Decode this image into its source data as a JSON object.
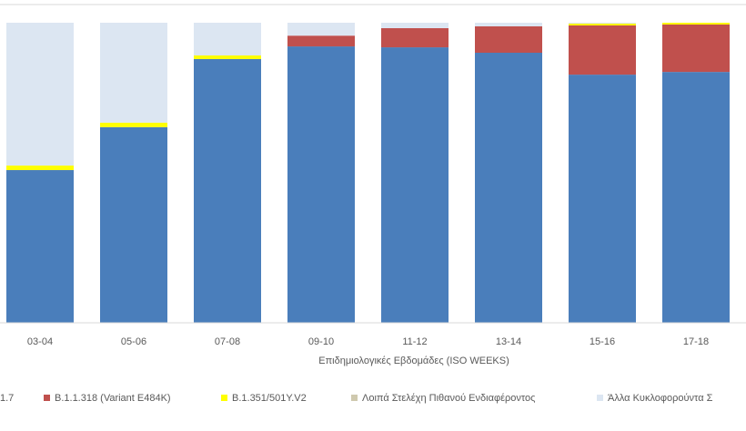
{
  "chart_data": {
    "type": "stacked_bar",
    "x_label": "Επιδημιολογικές Εβδομάδες (ISO WEEKS)",
    "categories": [
      "03-04",
      "05-06",
      "07-08",
      "09-10",
      "11-12",
      "13-14",
      "15-16",
      "17-18"
    ],
    "series": [
      {
        "name": "1.7",
        "color": "#4a7ebb",
        "values": [
          50.9,
          65.2,
          87.9,
          92.1,
          91.8,
          90.0,
          82.7,
          83.6
        ]
      },
      {
        "name": "B.1.1.318 (Variant E484K)",
        "color": "#c0504d",
        "values": [
          0,
          0,
          0,
          3.6,
          6.4,
          8.8,
          16.4,
          15.8
        ]
      },
      {
        "name": "B.1.351/501Y.V2",
        "color": "#ffff00",
        "values": [
          1.5,
          1.5,
          1.2,
          0,
          0,
          0,
          0.6,
          0.6
        ]
      },
      {
        "name": "Λοιπά Στελέχη Πιθανού Ενδιαφέροντος",
        "color": "#cfc9ae",
        "values": [
          0,
          0,
          0,
          0,
          0,
          0,
          0,
          0
        ]
      },
      {
        "name": "Άλλα Κυκλοφορούντα Σ",
        "color": "#dce6f2",
        "values": [
          47.6,
          33.3,
          10.9,
          4.3,
          1.8,
          1.2,
          0.3,
          0
        ]
      }
    ],
    "ylim": [
      0,
      100
    ]
  }
}
